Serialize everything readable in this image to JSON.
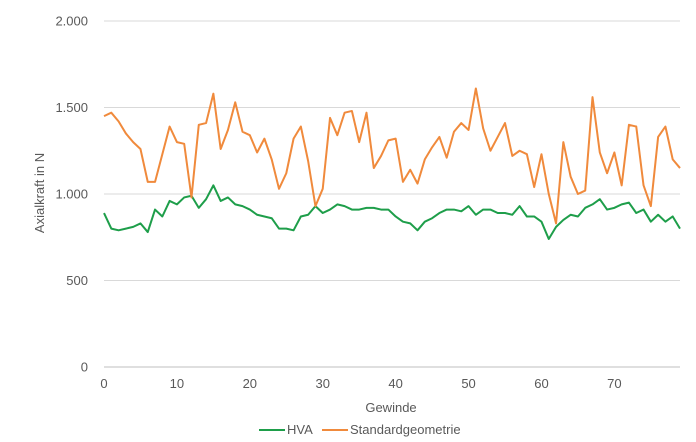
{
  "chart_data": {
    "type": "line",
    "xlabel": "Gewinde",
    "ylabel": "Axialkraft in N",
    "xlim": [
      0,
      79
    ],
    "ylim": [
      0,
      2000
    ],
    "xticks": [
      0,
      10,
      20,
      30,
      40,
      50,
      60,
      70
    ],
    "xtick_labels": [
      "0",
      "10",
      "20",
      "30",
      "40",
      "50",
      "60",
      "70"
    ],
    "yticks": [
      0,
      500,
      1000,
      1500,
      2000
    ],
    "ytick_labels": [
      "0",
      "500",
      "1.000",
      "1.500",
      "2.000"
    ],
    "grid": "horizontal",
    "legend": "bottom",
    "x": [
      0,
      1,
      2,
      3,
      4,
      5,
      6,
      7,
      8,
      9,
      10,
      11,
      12,
      13,
      14,
      15,
      16,
      17,
      18,
      19,
      20,
      21,
      22,
      23,
      24,
      25,
      26,
      27,
      28,
      29,
      30,
      31,
      32,
      33,
      34,
      35,
      36,
      37,
      38,
      39,
      40,
      41,
      42,
      43,
      44,
      45,
      46,
      47,
      48,
      49,
      50,
      51,
      52,
      53,
      54,
      55,
      56,
      57,
      58,
      59,
      60,
      61,
      62,
      63,
      64,
      65,
      66,
      67,
      68,
      69,
      70,
      71,
      72,
      73,
      74,
      75,
      76,
      77,
      78,
      79
    ],
    "series": [
      {
        "name": "HVA",
        "color": "#1e9e4a",
        "values": [
          890,
          800,
          790,
          800,
          810,
          830,
          780,
          910,
          870,
          960,
          940,
          980,
          990,
          920,
          970,
          1050,
          960,
          980,
          940,
          930,
          910,
          880,
          870,
          860,
          800,
          800,
          790,
          870,
          880,
          930,
          890,
          910,
          940,
          930,
          910,
          910,
          920,
          920,
          910,
          910,
          870,
          840,
          830,
          790,
          840,
          860,
          890,
          910,
          910,
          900,
          930,
          880,
          910,
          910,
          890,
          890,
          880,
          930,
          870,
          870,
          840,
          740,
          810,
          850,
          880,
          870,
          920,
          940,
          970,
          910,
          920,
          940,
          950,
          890,
          910,
          840,
          880,
          840,
          870,
          800
        ]
      },
      {
        "name": "Standardgeometrie",
        "color": "#f08a3c",
        "values": [
          1450,
          1470,
          1420,
          1350,
          1300,
          1260,
          1070,
          1070,
          1230,
          1390,
          1300,
          1290,
          980,
          1400,
          1410,
          1580,
          1260,
          1370,
          1530,
          1360,
          1340,
          1240,
          1320,
          1200,
          1030,
          1120,
          1320,
          1390,
          1190,
          930,
          1030,
          1440,
          1340,
          1470,
          1480,
          1300,
          1470,
          1150,
          1220,
          1310,
          1320,
          1070,
          1140,
          1060,
          1200,
          1270,
          1330,
          1210,
          1360,
          1410,
          1370,
          1610,
          1380,
          1250,
          1330,
          1410,
          1220,
          1250,
          1230,
          1040,
          1230,
          1000,
          830,
          1300,
          1100,
          1000,
          1020,
          1560,
          1240,
          1120,
          1240,
          1050,
          1400,
          1390,
          1050,
          930,
          1330,
          1390,
          1200,
          1150
        ]
      }
    ]
  }
}
